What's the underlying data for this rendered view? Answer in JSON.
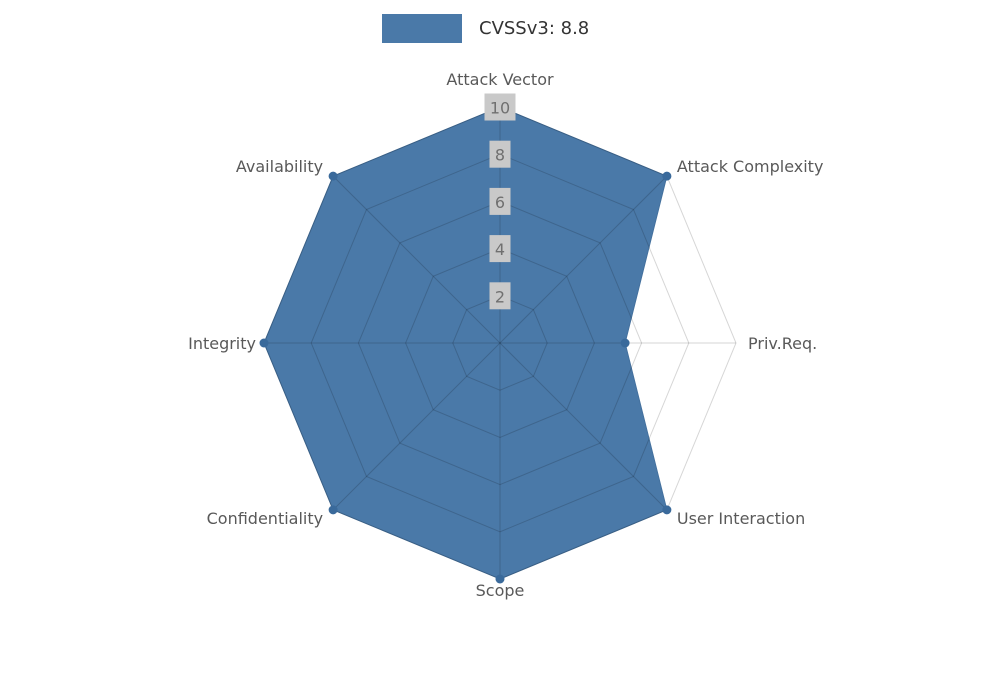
{
  "chart_data": {
    "type": "radar",
    "legend": {
      "label": "CVSSv3: 8.8"
    },
    "axes": [
      "Attack Vector",
      "Attack Complexity",
      "Priv.Req.",
      "User Interaction",
      "Scope",
      "Confidentiality",
      "Integrity",
      "Availability"
    ],
    "series": [
      {
        "name": "CVSSv3: 8.8",
        "values": [
          10,
          10,
          5.3,
          10,
          10,
          10,
          10,
          10
        ]
      }
    ],
    "radial_ticks": [
      2,
      4,
      6,
      8,
      10
    ],
    "max": 10,
    "min": 0,
    "grid_shape": "polygon",
    "start_axis": "top",
    "direction": "clockwise",
    "legend_position": "top-center"
  },
  "colors": {
    "series_fill": "#4a79a8",
    "series_stroke": "#44719e",
    "series_dot": "#3a6a9b",
    "grid_line": "rgba(0,0,0,0.16)",
    "tick_box_bg": "#c9c9c9",
    "tick_text": "#707070",
    "axis_label_text": "#595959",
    "legend_text": "#333333",
    "background": "#ffffff"
  }
}
